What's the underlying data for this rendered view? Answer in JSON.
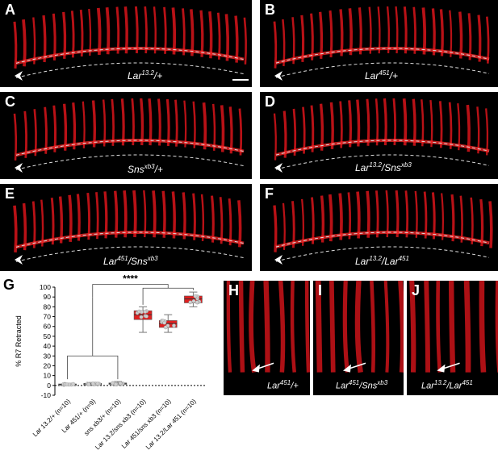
{
  "panels": [
    {
      "letter": "A",
      "base": "Lar",
      "sup": "13.2",
      "rest": "/+"
    },
    {
      "letter": "B",
      "base": "Lar",
      "sup": "451",
      "rest": "/+"
    },
    {
      "letter": "C",
      "base": "Sns",
      "sup": "xb3",
      "rest": "/+"
    },
    {
      "letter": "D",
      "base": "Lar",
      "sup": "13.2",
      "rest": "/Sns",
      "sup2": "xb3"
    },
    {
      "letter": "E",
      "base": "Lar",
      "sup": "451",
      "rest": "/Sns",
      "sup2": "xb3"
    },
    {
      "letter": "F",
      "base": "Lar",
      "sup": "13.2",
      "rest": "/Lar",
      "sup2": "451"
    },
    {
      "letter": "H",
      "base": "Lar",
      "sup": "451",
      "rest": "/+"
    },
    {
      "letter": "I",
      "base": "Lar",
      "sup": "451",
      "rest": "/Sns",
      "sup2": "xb3"
    },
    {
      "letter": "J",
      "base": "Lar",
      "sup": "13.2",
      "rest": "/Lar",
      "sup2": "451"
    }
  ],
  "chart_letter": "G",
  "chart_data": {
    "type": "box",
    "ylabel": "% R7 Retracted",
    "ylim": [
      -10,
      100
    ],
    "yticks": [
      -10,
      0,
      10,
      20,
      30,
      40,
      50,
      60,
      70,
      80,
      90,
      100
    ],
    "categories": [
      "Lar 13.2/+ (n=10)",
      "Lar 451/+ (n=9)",
      "sns xb3/+ (n=10)",
      "Lar 13.2/sns xb3 (n=10)",
      "Lar 451/sns xb3 (n=10)",
      "Lar 13.2/Lar 451 (n=10)"
    ],
    "boxes": [
      {
        "min": 0,
        "q1": 0.5,
        "median": 1,
        "q3": 1.5,
        "max": 2
      },
      {
        "min": 0,
        "q1": 0.8,
        "median": 1.5,
        "q3": 2,
        "max": 3
      },
      {
        "min": 0.5,
        "q1": 1,
        "median": 2,
        "q3": 2.5,
        "max": 4
      },
      {
        "min": 54,
        "q1": 67,
        "median": 72,
        "q3": 76,
        "max": 80
      },
      {
        "min": 54,
        "q1": 59,
        "median": 63,
        "q3": 66,
        "max": 72
      },
      {
        "min": 80,
        "q1": 84,
        "median": 88,
        "q3": 91,
        "max": 95
      }
    ],
    "significance": "****",
    "box_colors": {
      "control": "#9a9a9a",
      "treated": "#e02020"
    }
  }
}
